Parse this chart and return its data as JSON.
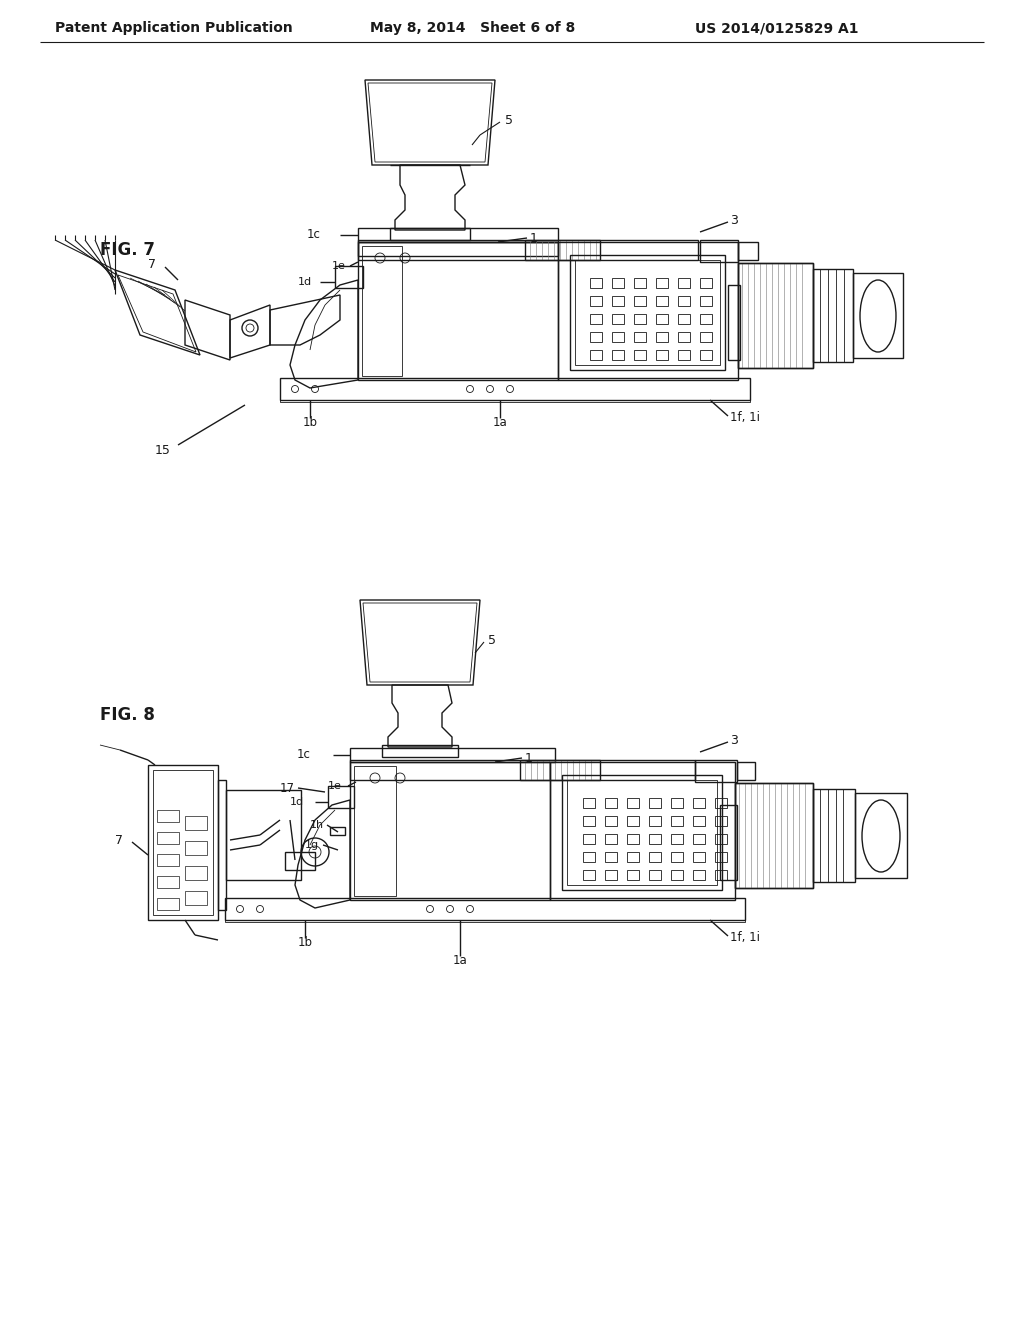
{
  "page_background": "#ffffff",
  "header_left": "Patent Application Publication",
  "header_center": "May 8, 2014   Sheet 6 of 8",
  "header_right": "US 2014/0125829 A1",
  "fig7_label": "FIG. 7",
  "fig8_label": "FIG. 8",
  "line_color": "#1a1a1a",
  "gray_color": "#888888",
  "light_gray": "#cccccc",
  "lw": 1.0,
  "tlw": 0.6,
  "thw": 1.5
}
